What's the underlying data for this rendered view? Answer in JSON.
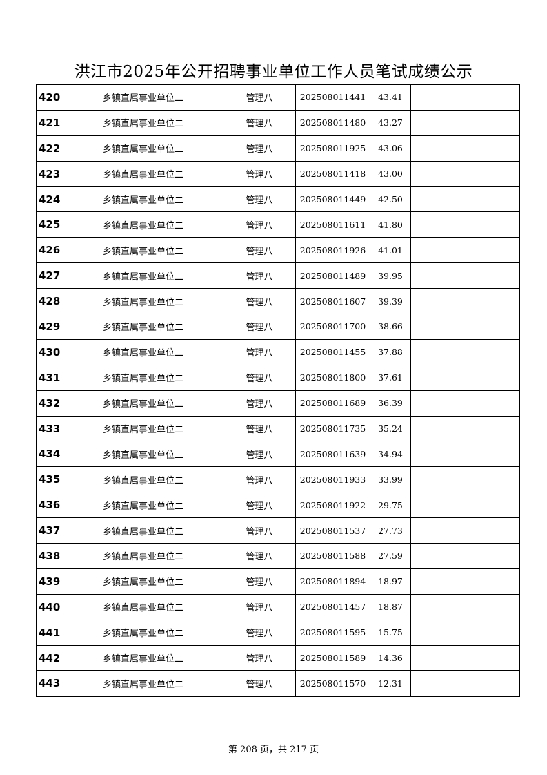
{
  "title": "洪江市2025年公开招聘事业单位工作人员笔试成绩公示",
  "rows": [
    {
      "no": "420",
      "unit": "乡镇直属事业单位二",
      "position": "管理八",
      "exam_id": "202508011441",
      "score": "43.41",
      "note": ""
    },
    {
      "no": "421",
      "unit": "乡镇直属事业单位二",
      "position": "管理八",
      "exam_id": "202508011480",
      "score": "43.27",
      "note": ""
    },
    {
      "no": "422",
      "unit": "乡镇直属事业单位二",
      "position": "管理八",
      "exam_id": "202508011925",
      "score": "43.06",
      "note": ""
    },
    {
      "no": "423",
      "unit": "乡镇直属事业单位二",
      "position": "管理八",
      "exam_id": "202508011418",
      "score": "43.00",
      "note": ""
    },
    {
      "no": "424",
      "unit": "乡镇直属事业单位二",
      "position": "管理八",
      "exam_id": "202508011449",
      "score": "42.50",
      "note": ""
    },
    {
      "no": "425",
      "unit": "乡镇直属事业单位二",
      "position": "管理八",
      "exam_id": "202508011611",
      "score": "41.80",
      "note": ""
    },
    {
      "no": "426",
      "unit": "乡镇直属事业单位二",
      "position": "管理八",
      "exam_id": "202508011926",
      "score": "41.01",
      "note": ""
    },
    {
      "no": "427",
      "unit": "乡镇直属事业单位二",
      "position": "管理八",
      "exam_id": "202508011489",
      "score": "39.95",
      "note": ""
    },
    {
      "no": "428",
      "unit": "乡镇直属事业单位二",
      "position": "管理八",
      "exam_id": "202508011607",
      "score": "39.39",
      "note": ""
    },
    {
      "no": "429",
      "unit": "乡镇直属事业单位二",
      "position": "管理八",
      "exam_id": "202508011700",
      "score": "38.66",
      "note": ""
    },
    {
      "no": "430",
      "unit": "乡镇直属事业单位二",
      "position": "管理八",
      "exam_id": "202508011455",
      "score": "37.88",
      "note": ""
    },
    {
      "no": "431",
      "unit": "乡镇直属事业单位二",
      "position": "管理八",
      "exam_id": "202508011800",
      "score": "37.61",
      "note": ""
    },
    {
      "no": "432",
      "unit": "乡镇直属事业单位二",
      "position": "管理八",
      "exam_id": "202508011689",
      "score": "36.39",
      "note": ""
    },
    {
      "no": "433",
      "unit": "乡镇直属事业单位二",
      "position": "管理八",
      "exam_id": "202508011735",
      "score": "35.24",
      "note": ""
    },
    {
      "no": "434",
      "unit": "乡镇直属事业单位二",
      "position": "管理八",
      "exam_id": "202508011639",
      "score": "34.94",
      "note": ""
    },
    {
      "no": "435",
      "unit": "乡镇直属事业单位二",
      "position": "管理八",
      "exam_id": "202508011933",
      "score": "33.99",
      "note": ""
    },
    {
      "no": "436",
      "unit": "乡镇直属事业单位二",
      "position": "管理八",
      "exam_id": "202508011922",
      "score": "29.75",
      "note": ""
    },
    {
      "no": "437",
      "unit": "乡镇直属事业单位二",
      "position": "管理八",
      "exam_id": "202508011537",
      "score": "27.73",
      "note": ""
    },
    {
      "no": "438",
      "unit": "乡镇直属事业单位二",
      "position": "管理八",
      "exam_id": "202508011588",
      "score": "27.59",
      "note": ""
    },
    {
      "no": "439",
      "unit": "乡镇直属事业单位二",
      "position": "管理八",
      "exam_id": "202508011894",
      "score": "18.97",
      "note": ""
    },
    {
      "no": "440",
      "unit": "乡镇直属事业单位二",
      "position": "管理八",
      "exam_id": "202508011457",
      "score": "18.87",
      "note": ""
    },
    {
      "no": "441",
      "unit": "乡镇直属事业单位二",
      "position": "管理八",
      "exam_id": "202508011595",
      "score": "15.75",
      "note": ""
    },
    {
      "no": "442",
      "unit": "乡镇直属事业单位二",
      "position": "管理八",
      "exam_id": "202508011589",
      "score": "14.36",
      "note": ""
    },
    {
      "no": "443",
      "unit": "乡镇直属事业单位二",
      "position": "管理八",
      "exam_id": "202508011570",
      "score": "12.31",
      "note": ""
    }
  ],
  "footer": "第 208 页，共 217 页"
}
